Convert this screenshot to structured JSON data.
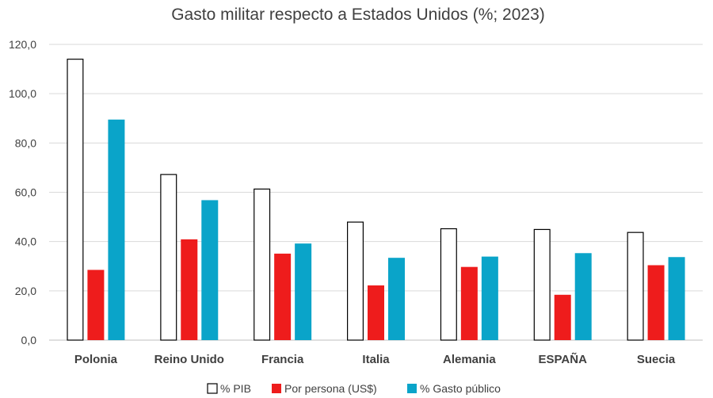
{
  "chart_data": {
    "type": "bar",
    "title": "Gasto militar respecto a Estados Unidos (%; 2023)",
    "xlabel": "",
    "ylabel": "",
    "ylim": [
      0,
      120
    ],
    "yticks": [
      "0,0",
      "20,0",
      "40,0",
      "60,0",
      "80,0",
      "100,0",
      "120,0"
    ],
    "ytick_values": [
      0,
      20,
      40,
      60,
      80,
      100,
      120
    ],
    "categories": [
      "Polonia",
      "Reino Unido",
      "Francia",
      "Italia",
      "Alemania",
      "ESPAÑA",
      "Suecia"
    ],
    "series": [
      {
        "name": "% PIB",
        "color": "#ffffff",
        "stroke": "#000000",
        "values": [
          114.0,
          67.2,
          61.3,
          47.9,
          45.2,
          44.9,
          43.7
        ]
      },
      {
        "name": "Por persona (US$)",
        "color": "#ee1c1c",
        "stroke": "none",
        "values": [
          28.5,
          40.9,
          35.1,
          22.2,
          29.7,
          18.4,
          30.4
        ]
      },
      {
        "name": "% Gasto público",
        "color": "#0aa4c9",
        "stroke": "none",
        "values": [
          89.5,
          56.8,
          39.2,
          33.4,
          33.9,
          35.3,
          33.7
        ]
      }
    ],
    "grid": true,
    "legend_position": "bottom"
  }
}
